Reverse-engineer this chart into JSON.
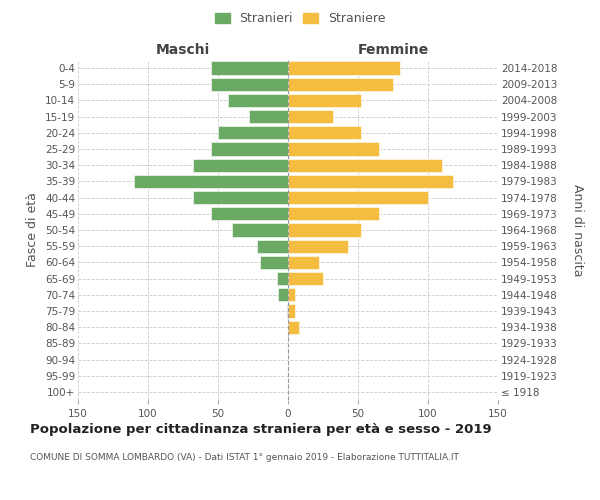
{
  "age_groups": [
    "100+",
    "95-99",
    "90-94",
    "85-89",
    "80-84",
    "75-79",
    "70-74",
    "65-69",
    "60-64",
    "55-59",
    "50-54",
    "45-49",
    "40-44",
    "35-39",
    "30-34",
    "25-29",
    "20-24",
    "15-19",
    "10-14",
    "5-9",
    "0-4"
  ],
  "birth_years": [
    "≤ 1918",
    "1919-1923",
    "1924-1928",
    "1929-1933",
    "1934-1938",
    "1939-1943",
    "1944-1948",
    "1949-1953",
    "1954-1958",
    "1959-1963",
    "1964-1968",
    "1969-1973",
    "1974-1978",
    "1979-1983",
    "1984-1988",
    "1989-1993",
    "1994-1998",
    "1999-2003",
    "2004-2008",
    "2009-2013",
    "2014-2018"
  ],
  "maschi": [
    0,
    0,
    0,
    0,
    0,
    1,
    7,
    8,
    20,
    22,
    40,
    55,
    68,
    110,
    68,
    55,
    50,
    28,
    43,
    55,
    55
  ],
  "femmine": [
    0,
    0,
    0,
    0,
    8,
    5,
    5,
    25,
    22,
    43,
    52,
    65,
    100,
    118,
    110,
    65,
    52,
    32,
    52,
    75,
    80
  ],
  "male_color": "#6aaa64",
  "female_color": "#f5bc42",
  "title": "Popolazione per cittadinanza straniera per età e sesso - 2019",
  "subtitle": "COMUNE DI SOMMA LOMBARDO (VA) - Dati ISTAT 1° gennaio 2019 - Elaborazione TUTTITALIA.IT",
  "legend_male": "Stranieri",
  "legend_female": "Straniere",
  "ylabel_left": "Fasce di età",
  "ylabel_right": "Anni di nascita",
  "header_left": "Maschi",
  "header_right": "Femmine",
  "xlim": 150,
  "background_color": "#ffffff",
  "grid_color": "#cccccc",
  "tick_fontsize": 7.5,
  "header_fontsize": 10,
  "ylabel_fontsize": 9,
  "title_fontsize": 9.5,
  "subtitle_fontsize": 6.5
}
